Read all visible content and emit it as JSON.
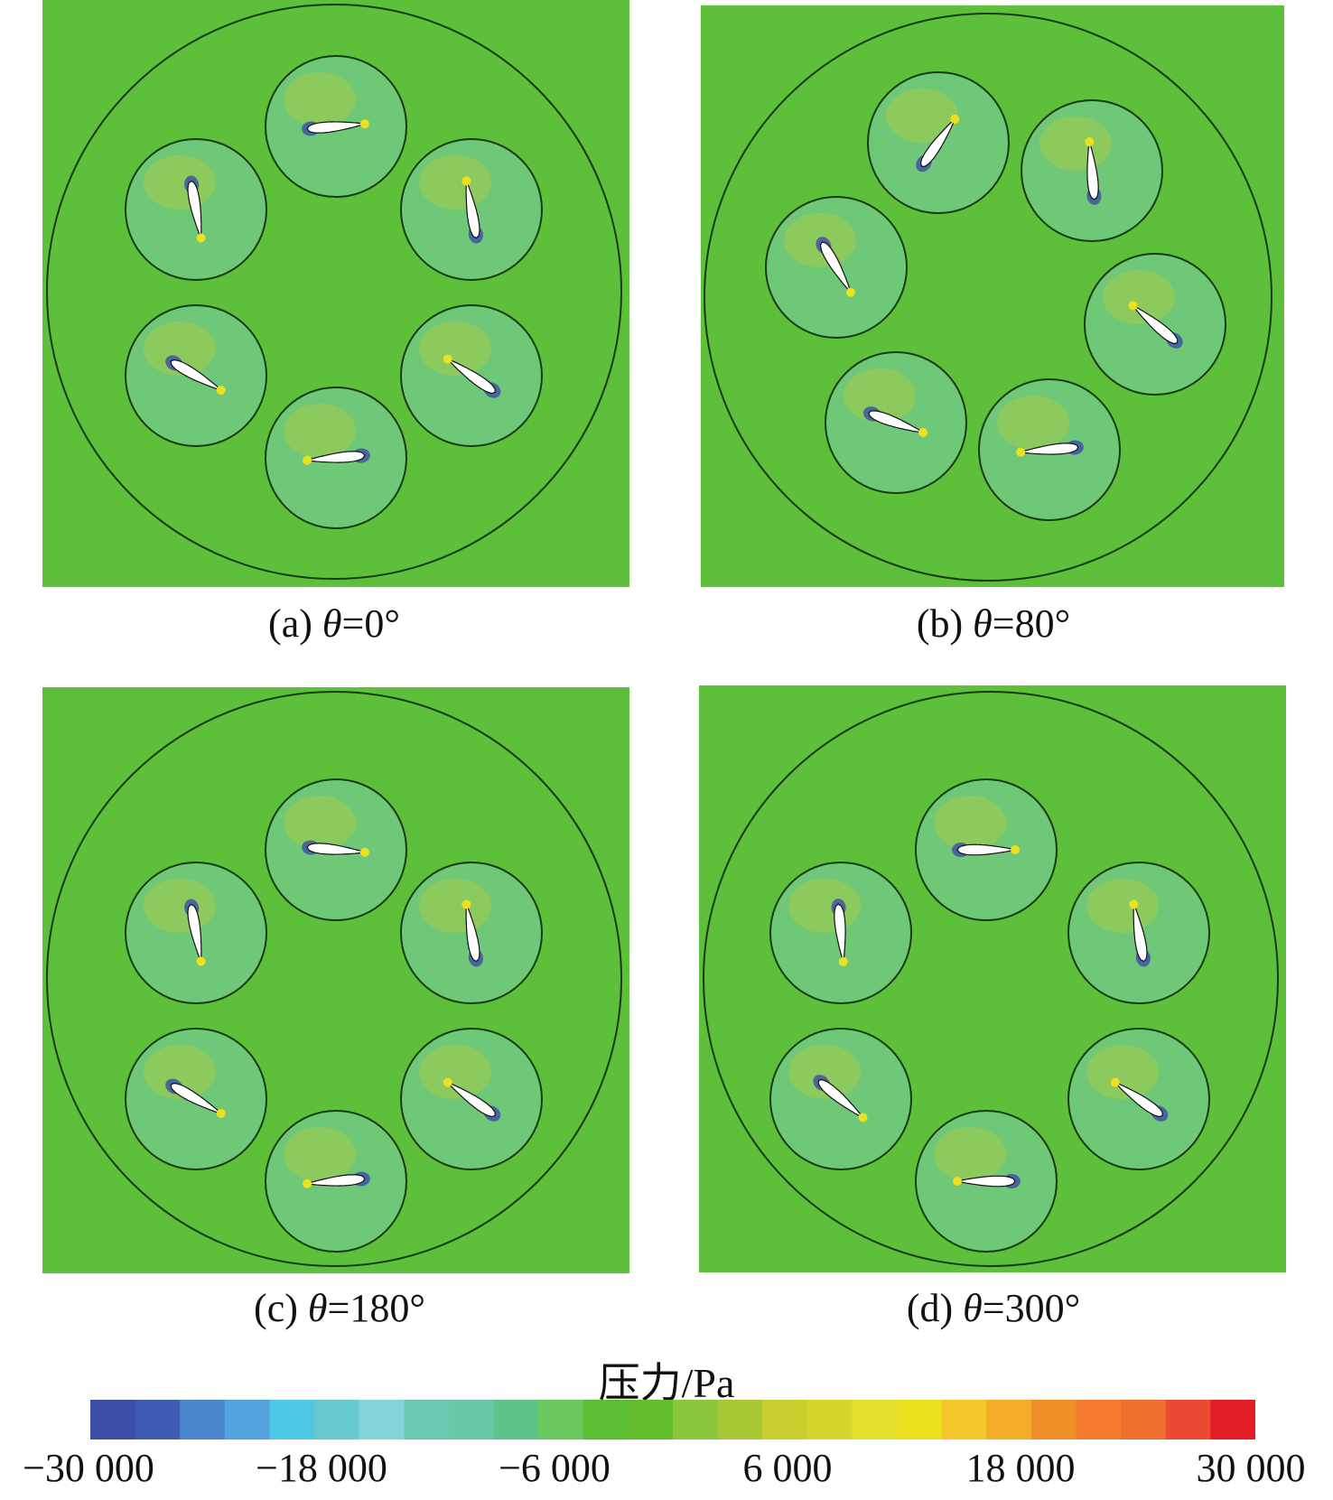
{
  "panels": [
    {
      "id": "a",
      "label": "(a) ",
      "theta": "θ",
      "value": "=0°"
    },
    {
      "id": "b",
      "label": "(b) ",
      "theta": "θ",
      "value": "=80°"
    },
    {
      "id": "c",
      "label": "(c) ",
      "theta": "θ",
      "value": "=180°"
    },
    {
      "id": "d",
      "label": "(d) ",
      "theta": "θ",
      "value": "=300°"
    }
  ],
  "legend": {
    "title": "压力/Pa",
    "min": -30000,
    "max": 30000,
    "ticks": [
      "−30 000",
      "−18 000",
      "−6 000",
      "6 000",
      "18 000",
      "30 000"
    ],
    "colors": [
      "#3b4ea8",
      "#3f5cb4",
      "#4a86cc",
      "#52a3de",
      "#4ec8e4",
      "#67c9d0",
      "#83d3da",
      "#6cc9b4",
      "#68c7a4",
      "#5cc38a",
      "#6ac95e",
      "#5bbf33",
      "#63bd2d",
      "#8cc63b",
      "#a8c835",
      "#c7cf2e",
      "#d6d52c",
      "#e4e02e",
      "#ede01f",
      "#f4c82a",
      "#f5ac28",
      "#ef8f27",
      "#f57a2d",
      "#ef6f2e",
      "#ec4a33",
      "#e21d25"
    ],
    "base_color": "#5dbf3a"
  }
}
